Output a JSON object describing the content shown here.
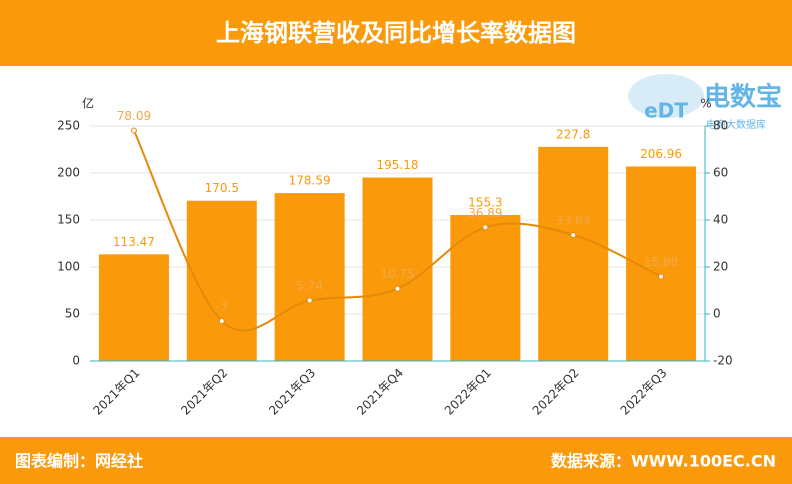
{
  "chart_data": {
    "type": "bar",
    "title": "上海钢联营收及同比增长率数据图",
    "footer_left": "图表编制：网经社",
    "footer_right": "数据来源：WWW.100EC.CN",
    "logo": {
      "mark": "eDT",
      "name": "电数宝",
      "tagline": "电商大数据库"
    },
    "y_label": "亿",
    "y2_label": "%",
    "categories": [
      "2021年Q1",
      "2021年Q2",
      "2021年Q3",
      "2021年Q4",
      "2022年Q1",
      "2022年Q2",
      "2022年Q3"
    ],
    "series": [
      {
        "name": "营收",
        "color": "#fa9a0a",
        "values": [
          113.47,
          170.5,
          178.59,
          195.18,
          155.3,
          227.8,
          206.96
        ]
      },
      {
        "name": "同比增长率",
        "color": "#e38a0a",
        "axis": "y2",
        "values": [
          78.09,
          -3,
          5.74,
          10.75,
          36.89,
          33.64,
          15.88
        ]
      }
    ],
    "ylim": [
      0,
      250
    ],
    "yticks": [
      0,
      50,
      100,
      150,
      200,
      250
    ],
    "y2lim": [
      -20,
      80
    ],
    "y2ticks": [
      -20,
      0,
      20,
      40,
      60,
      80
    ],
    "grid": true
  }
}
